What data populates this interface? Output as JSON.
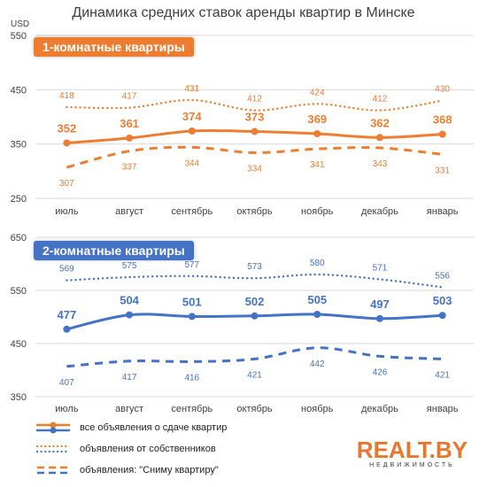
{
  "title": "Динамика средних ставок аренды квартир в Минске",
  "unit_label": "USD",
  "logo": {
    "main": "REALT.BY",
    "sub": "НЕДВИЖИМОСТЬ"
  },
  "colors": {
    "orange": "#ed7d31",
    "blue": "#4472c4",
    "grid": "#d9d9d9",
    "text": "#404040"
  },
  "legend": [
    {
      "label": "все объявления о сдаче квартир",
      "style": "solid"
    },
    {
      "label": "объявления от собственников",
      "style": "dotted"
    },
    {
      "label": "объявления: \"Сниму квартиру\"",
      "style": "dashed"
    }
  ],
  "chart_data": [
    {
      "type": "line",
      "title": "1-комнатные квартиры",
      "color": "#ed7d31",
      "categories": [
        "июль",
        "август",
        "сентябрь",
        "октябрь",
        "ноябрь",
        "декабрь",
        "январь"
      ],
      "yticks": [
        "250",
        "350",
        "450",
        "550"
      ],
      "ylim": [
        250,
        550
      ],
      "grid": true,
      "series": [
        {
          "name": "все объявления о сдаче квартир",
          "style": "solid",
          "values": [
            352,
            361,
            374,
            373,
            369,
            362,
            368
          ]
        },
        {
          "name": "объявления от собственников",
          "style": "dotted",
          "values": [
            418,
            417,
            431,
            412,
            424,
            412,
            430
          ]
        },
        {
          "name": "объявления: \"Сниму квартиру\"",
          "style": "dashed",
          "values": [
            307,
            337,
            344,
            334,
            341,
            343,
            331
          ]
        }
      ]
    },
    {
      "type": "line",
      "title": "2-комнатные квартиры",
      "color": "#4472c4",
      "categories": [
        "июль",
        "август",
        "сентябрь",
        "октябрь",
        "ноябрь",
        "декабрь",
        "январь"
      ],
      "yticks": [
        "350",
        "450",
        "550",
        "650"
      ],
      "ylim": [
        350,
        650
      ],
      "grid": true,
      "series": [
        {
          "name": "все объявления о сдаче квартир",
          "style": "solid",
          "values": [
            477,
            504,
            501,
            502,
            505,
            497,
            503
          ]
        },
        {
          "name": "объявления от собственников",
          "style": "dotted",
          "values": [
            569,
            575,
            577,
            573,
            580,
            571,
            556
          ]
        },
        {
          "name": "объявления: \"Сниму квартиру\"",
          "style": "dashed",
          "values": [
            407,
            417,
            416,
            421,
            442,
            426,
            421
          ]
        }
      ]
    }
  ]
}
